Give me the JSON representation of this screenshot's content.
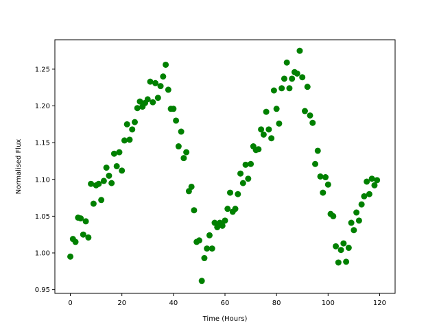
{
  "chart_data": {
    "type": "scatter",
    "title": "",
    "xlabel": "Time (Hours)",
    "ylabel": "Normalised Flux",
    "xlim": [
      -6,
      126
    ],
    "ylim": [
      0.945,
      1.29
    ],
    "xticks": [
      0,
      20,
      40,
      60,
      80,
      100,
      120
    ],
    "yticks": [
      0.95,
      1.0,
      1.05,
      1.1,
      1.15,
      1.2,
      1.25
    ],
    "xtick_labels": [
      "0",
      "20",
      "40",
      "60",
      "80",
      "100",
      "120"
    ],
    "ytick_labels": [
      "0.95",
      "1.00",
      "1.05",
      "1.10",
      "1.15",
      "1.20",
      "1.25"
    ],
    "grid": false,
    "legend": "none",
    "marker_color": "#008000",
    "series": [
      {
        "x": [
          0,
          1,
          2,
          3,
          4,
          5,
          6,
          7,
          8,
          9,
          10,
          11,
          12,
          13,
          14,
          15,
          16,
          17,
          18,
          19,
          20,
          21,
          22,
          23,
          24,
          25,
          26,
          27,
          28,
          29,
          30,
          31,
          32,
          33,
          34,
          35,
          36,
          37,
          38,
          39,
          40,
          41,
          42,
          43,
          44,
          45,
          46,
          47,
          48,
          49,
          50,
          51,
          52,
          53,
          54,
          55,
          56,
          57,
          58,
          59,
          60,
          61,
          62,
          63,
          64,
          65,
          66,
          67,
          68,
          69,
          70,
          71,
          72,
          73,
          74,
          75,
          76,
          77,
          78,
          79,
          80,
          81,
          82,
          83,
          84,
          85,
          86,
          87,
          88,
          89,
          90,
          91,
          92,
          93,
          94,
          95,
          96,
          97,
          98,
          99,
          100,
          101,
          102,
          103,
          104,
          105,
          106,
          107,
          108,
          109,
          110,
          111,
          112,
          113,
          114,
          115,
          116,
          117,
          118,
          119
        ],
        "y": [
          0.995,
          1.019,
          1.015,
          1.048,
          1.047,
          1.025,
          1.043,
          1.021,
          1.094,
          1.067,
          1.092,
          1.094,
          1.072,
          1.098,
          1.116,
          1.105,
          1.095,
          1.135,
          1.118,
          1.137,
          1.112,
          1.153,
          1.175,
          1.154,
          1.168,
          1.178,
          1.197,
          1.206,
          1.199,
          1.204,
          1.209,
          1.233,
          1.205,
          1.231,
          1.211,
          1.227,
          1.24,
          1.256,
          1.222,
          1.196,
          1.196,
          1.18,
          1.145,
          1.165,
          1.129,
          1.137,
          1.084,
          1.09,
          1.058,
          1.015,
          1.017,
          0.962,
          0.993,
          1.006,
          1.024,
          1.006,
          1.041,
          1.035,
          1.041,
          1.037,
          1.044,
          1.06,
          1.082,
          1.056,
          1.06,
          1.08,
          1.108,
          1.095,
          1.12,
          1.101,
          1.121,
          1.145,
          1.14,
          1.141,
          1.168,
          1.161,
          1.192,
          1.168,
          1.156,
          1.221,
          1.196,
          1.176,
          1.224,
          1.237,
          1.259,
          1.224,
          1.237,
          1.246,
          1.244,
          1.275,
          1.239,
          1.193,
          1.226,
          1.187,
          1.177,
          1.121,
          1.139,
          1.104,
          1.082,
          1.103,
          1.093,
          1.053,
          1.05,
          1.009,
          0.987,
          1.004,
          1.013,
          0.988,
          1.007,
          1.041,
          1.031,
          1.055,
          1.044,
          1.066,
          1.077,
          1.097,
          1.08,
          1.101,
          1.092,
          1.099
        ]
      }
    ]
  }
}
